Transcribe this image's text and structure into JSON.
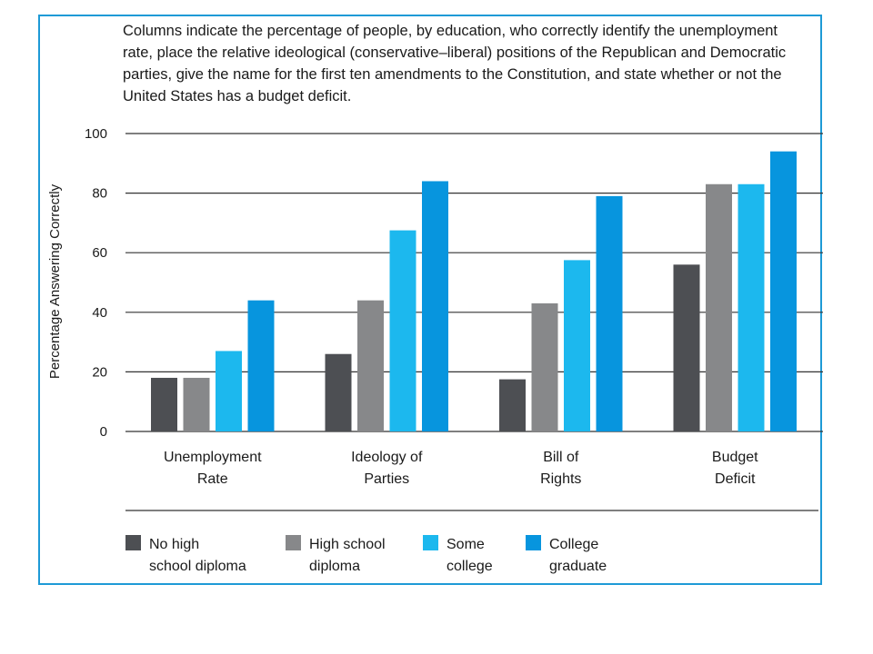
{
  "caption": "Columns indicate the percentage of people, by education, who correctly identify the unemployment rate, place the relative ideological (conservative–liberal) positions of the Republican and Democratic parties, give the name for the first ten amendments to the Constitution, and state whether or not the United States has a budget deficit.",
  "chart_data": {
    "type": "bar",
    "ylabel": "Percentage Answering Correctly",
    "xlabel": "",
    "ylim": [
      0,
      100
    ],
    "yticks": [
      0,
      20,
      40,
      60,
      80,
      100
    ],
    "grid": true,
    "legend_position": "bottom",
    "categories": [
      [
        "Unemployment",
        "Rate"
      ],
      [
        "Ideology of",
        "Parties"
      ],
      [
        "Bill of",
        "Rights"
      ],
      [
        "Budget",
        "Deficit"
      ]
    ],
    "series": [
      {
        "name": [
          "No high",
          "school diploma"
        ],
        "color": "#4d4f53",
        "values": [
          18,
          26,
          17.5,
          56
        ]
      },
      {
        "name": [
          "High school",
          "diploma"
        ],
        "color": "#87888a",
        "values": [
          18,
          44,
          43,
          83
        ]
      },
      {
        "name": [
          "Some",
          "college"
        ],
        "color": "#1cb8ee",
        "values": [
          27,
          67.5,
          57.5,
          83
        ]
      },
      {
        "name": [
          "College",
          "graduate"
        ],
        "color": "#0795de",
        "values": [
          44,
          84,
          79,
          94
        ]
      }
    ]
  }
}
